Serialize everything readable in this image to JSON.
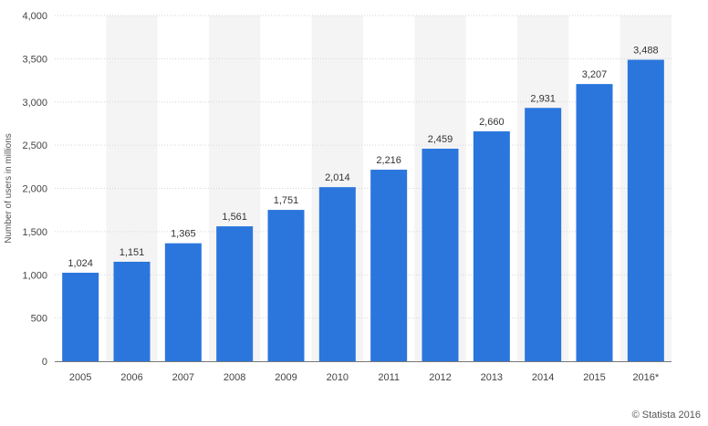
{
  "chart_data": {
    "type": "bar",
    "categories": [
      "2005",
      "2006",
      "2007",
      "2008",
      "2009",
      "2010",
      "2011",
      "2012",
      "2013",
      "2014",
      "2015",
      "2016*"
    ],
    "values": [
      1024,
      1151,
      1365,
      1561,
      1751,
      2014,
      2216,
      2459,
      2660,
      2931,
      3207,
      3488
    ],
    "data_labels": [
      "1,024",
      "1,151",
      "1,365",
      "1,561",
      "1,751",
      "2,014",
      "2,216",
      "2,459",
      "2,660",
      "2,931",
      "3,207",
      "3,488"
    ],
    "ylabel": "Number of users in millions",
    "xlabel": "",
    "ylim": [
      0,
      4000
    ],
    "yticks": [
      0,
      500,
      1000,
      1500,
      2000,
      2500,
      3000,
      3500,
      4000
    ],
    "ytick_labels": [
      "0",
      "500",
      "1,000",
      "1,500",
      "2,000",
      "2,500",
      "3,000",
      "3,500",
      "4,000"
    ],
    "grid": true,
    "legend": "none",
    "colors": {
      "bar": "#2a76dd",
      "band": "#f4f4f4",
      "grid": "#d6d6d6",
      "axis": "#777777"
    }
  },
  "credit": "© Statista 2016"
}
